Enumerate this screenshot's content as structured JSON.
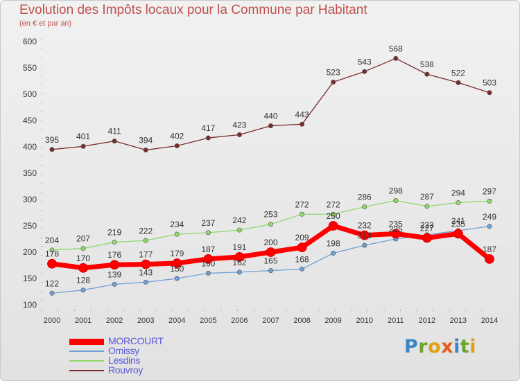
{
  "header": {
    "title": "Evolution des Impôts locaux pour la Commune par Habitant",
    "subtitle": "(en € et par an)"
  },
  "logo": {
    "text": "Proxiti",
    "colors": [
      "#3a86c8",
      "#6aa42f",
      "#e0a012",
      "#e85a1c",
      "#3a86c8",
      "#6aa42f",
      "#e0a012"
    ]
  },
  "chart_data": {
    "type": "line",
    "x": [
      2000,
      2001,
      2002,
      2003,
      2004,
      2005,
      2006,
      2007,
      2008,
      2009,
      2010,
      2011,
      2012,
      2013,
      2014
    ],
    "ylim": [
      100,
      600
    ],
    "yticks": [
      100,
      150,
      200,
      250,
      300,
      350,
      400,
      450,
      500,
      550,
      600
    ],
    "grid": false,
    "legend_position": "bottom-left",
    "series": [
      {
        "name": "MORCOURT",
        "color": "#ff0000",
        "emphasis": true,
        "values": [
          178,
          170,
          176,
          177,
          179,
          187,
          191,
          200,
          209,
          250,
          232,
          235,
          227,
          235,
          187
        ]
      },
      {
        "name": "Omissy",
        "color": "#6fa0d2",
        "values": [
          122,
          128,
          139,
          143,
          150,
          160,
          162,
          165,
          168,
          198,
          213,
          225,
          233,
          241,
          249
        ]
      },
      {
        "name": "Lesdins",
        "color": "#90d86a",
        "values": [
          204,
          207,
          219,
          222,
          234,
          237,
          242,
          253,
          272,
          272,
          286,
          298,
          287,
          294,
          297
        ]
      },
      {
        "name": "Rouvroy",
        "color": "#7a2b2b",
        "values": [
          395,
          401,
          411,
          394,
          402,
          417,
          423,
          440,
          443,
          523,
          543,
          568,
          538,
          522,
          503
        ]
      }
    ]
  }
}
